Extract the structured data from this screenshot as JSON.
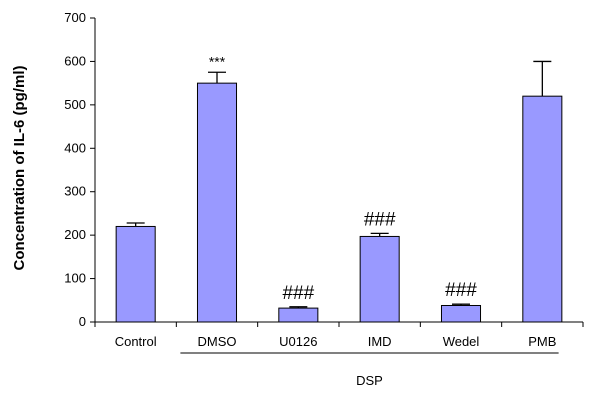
{
  "chart_data": {
    "type": "bar",
    "categories": [
      "Control",
      "DMSO",
      "U0126",
      "IMD",
      "Wedel",
      "PMB"
    ],
    "values": [
      220,
      550,
      32,
      197,
      38,
      520
    ],
    "errors": [
      8,
      25,
      3,
      7,
      3,
      80
    ],
    "annotations": [
      "",
      "***",
      "###",
      "###",
      "###",
      ""
    ],
    "ylabel": "Concentration of IL-6 (pg/ml)",
    "ylim": [
      0,
      700
    ],
    "yticks": [
      0,
      100,
      200,
      300,
      400,
      500,
      600,
      700
    ],
    "grid": false,
    "bar_color": "#9999ff",
    "bar_edge_color": "#000000",
    "group": {
      "label": "DSP",
      "from_category": "DMSO",
      "to_category": "PMB"
    }
  }
}
